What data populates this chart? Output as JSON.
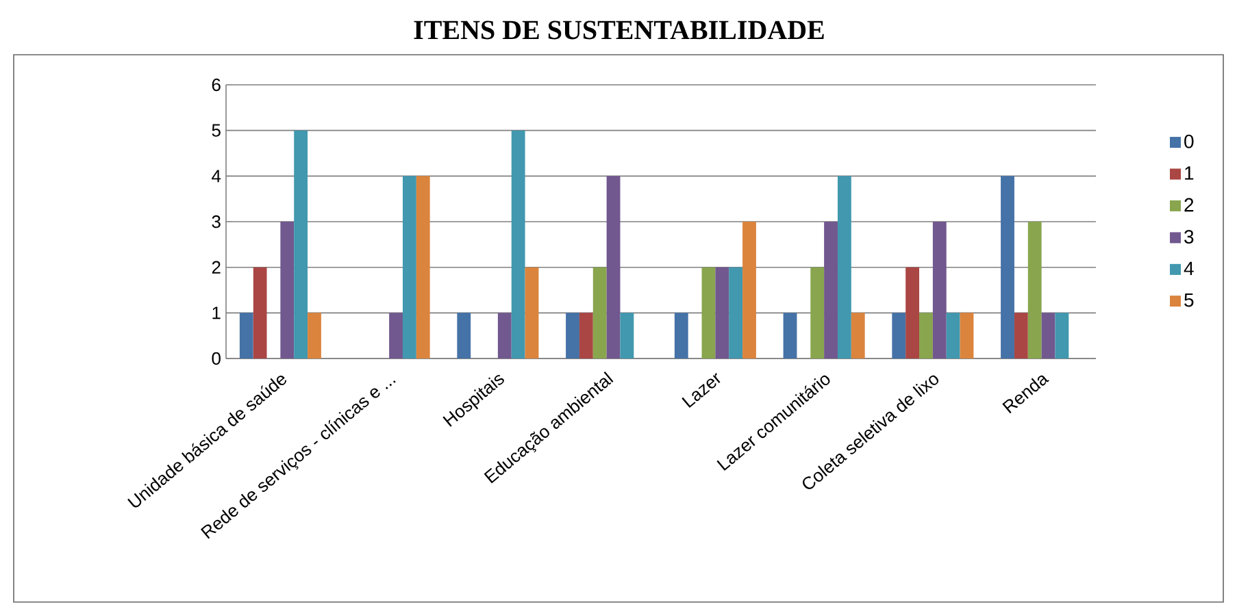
{
  "chart_data": {
    "type": "bar",
    "title": "ITENS DE SUSTENTABILIDADE",
    "categories": [
      "Unidade básica de saúde",
      "Rede de serviços - clínicas e ...",
      "Hospitais",
      "Educação ambiental",
      "Lazer",
      "Lazer comunitário",
      "Coleta seletiva de lixo",
      "Renda"
    ],
    "series": [
      {
        "name": "0",
        "color": "#4572a7",
        "values": [
          1,
          0,
          1,
          1,
          1,
          1,
          1,
          4
        ]
      },
      {
        "name": "1",
        "color": "#aa4643",
        "values": [
          2,
          0,
          0,
          1,
          0,
          0,
          2,
          1
        ]
      },
      {
        "name": "2",
        "color": "#89a54e",
        "values": [
          0,
          0,
          0,
          2,
          2,
          2,
          1,
          3
        ]
      },
      {
        "name": "3",
        "color": "#71588f",
        "values": [
          3,
          1,
          1,
          4,
          2,
          3,
          3,
          1
        ]
      },
      {
        "name": "4",
        "color": "#4198af",
        "values": [
          5,
          4,
          5,
          1,
          2,
          4,
          1,
          1
        ]
      },
      {
        "name": "5",
        "color": "#db843d",
        "values": [
          1,
          4,
          2,
          0,
          3,
          1,
          1,
          0
        ]
      }
    ],
    "ylim": [
      0,
      6
    ],
    "yticks": [
      0,
      1,
      2,
      3,
      4,
      5,
      6
    ],
    "grid": "y",
    "legend": "right"
  }
}
